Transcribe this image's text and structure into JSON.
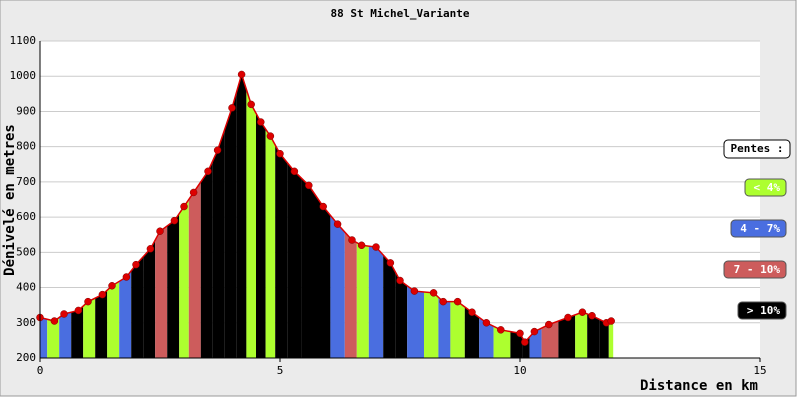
{
  "chart_data": {
    "type": "elevation-profile",
    "title": "88 St Michel_Variante",
    "y_label": "Dénivelé en metres",
    "x_label": "Distance en km",
    "xlim": [
      0,
      15
    ],
    "xticks": [
      0,
      5,
      10,
      15
    ],
    "ylim": [
      200,
      1100
    ],
    "yticks": [
      200,
      300,
      400,
      500,
      600,
      700,
      800,
      900,
      1000,
      1100
    ],
    "grid": true,
    "marker_color": "#dd0000",
    "x": [
      0,
      0.3,
      0.5,
      0.8,
      1.0,
      1.3,
      1.5,
      1.8,
      2.0,
      2.3,
      2.5,
      2.8,
      3.0,
      3.2,
      3.5,
      3.7,
      4.0,
      4.2,
      4.4,
      4.6,
      4.8,
      5.0,
      5.3,
      5.6,
      5.9,
      6.2,
      6.5,
      6.7,
      7.0,
      7.3,
      7.5,
      7.8,
      8.2,
      8.4,
      8.7,
      9.0,
      9.3,
      9.6,
      10.0,
      10.1,
      10.3,
      10.6,
      11.0,
      11.3,
      11.5,
      11.8,
      11.9
    ],
    "values": [
      315,
      305,
      325,
      335,
      360,
      380,
      405,
      430,
      465,
      510,
      560,
      590,
      630,
      670,
      730,
      790,
      910,
      1005,
      920,
      870,
      830,
      780,
      730,
      690,
      630,
      580,
      535,
      520,
      515,
      470,
      420,
      390,
      385,
      360,
      360,
      330,
      300,
      280,
      270,
      245,
      275,
      295,
      315,
      330,
      320,
      300,
      305
    ],
    "segment_colors": [
      "#4a6ee0",
      "#adff2f",
      "#4a6ee0",
      "#000000",
      "#adff2f",
      "#000000",
      "#adff2f",
      "#4a6ee0",
      "#000000",
      "#000000",
      "#cd5c5c",
      "#000000",
      "#adff2f",
      "#cd5c5c",
      "#000000",
      "#000000",
      "#000000",
      "#000000",
      "#adff2f",
      "#000000",
      "#adff2f",
      "#000000",
      "#000000",
      "#000000",
      "#000000",
      "#4a6ee0",
      "#cd5c5c",
      "#adff2f",
      "#4a6ee0",
      "#000000",
      "#000000",
      "#4a6ee0",
      "#adff2f",
      "#4a6ee0",
      "#adff2f",
      "#000000",
      "#4a6ee0",
      "#adff2f",
      "#000000",
      "#000000",
      "#4a6ee0",
      "#cd5c5c",
      "#000000",
      "#adff2f",
      "#000000",
      "#000000",
      "#adff2f"
    ],
    "legend": {
      "title": "Pentes :",
      "entries": [
        {
          "label": "< 4%",
          "color": "#adff2f"
        },
        {
          "label": "4 - 7%",
          "color": "#4a6ee0"
        },
        {
          "label": "7 - 10%",
          "color": "#cd5c5c"
        },
        {
          "label": "> 10%",
          "color": "#000000"
        }
      ]
    }
  }
}
